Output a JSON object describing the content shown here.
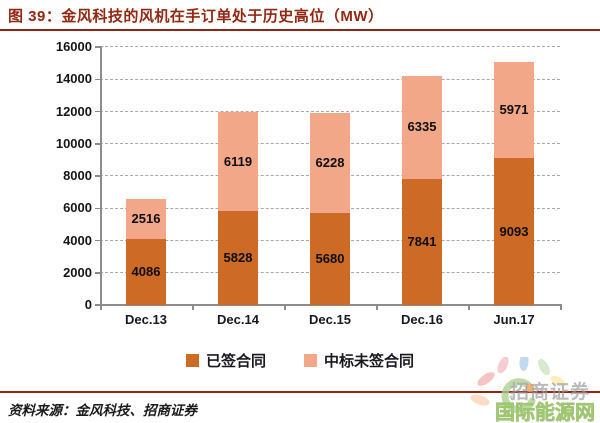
{
  "title": "图 39：金风科技的风机在手订单处于历史高位（MW）",
  "source_note": "资料来源：金风科技、招商证券",
  "watermark": {
    "logo": "flower-sun-logo",
    "text_top": "招商证券",
    "text_bottom": "国际能源网"
  },
  "colors": {
    "title_red": "#92271{2}",
    "rule_red": "#8e2412",
    "bar_signed": "#cd6a26",
    "bar_unsigned": "#f2a788",
    "gridline_gray": "#a8a8a8",
    "axis_gray": "#8c8c8c"
  },
  "chart_data": {
    "type": "bar",
    "stacked": true,
    "title": "金风科技的风机在手订单处于历史高位（MW）",
    "categories": [
      "Dec.13",
      "Dec.14",
      "Dec.15",
      "Dec.16",
      "Jun.17"
    ],
    "series": [
      {
        "name": "已签合同",
        "color": "#cd6a26",
        "values": [
          4086,
          5828,
          5680,
          7841,
          9093
        ]
      },
      {
        "name": "中标未签合同",
        "color": "#f2a788",
        "values": [
          2516,
          6119,
          6228,
          6335,
          5971
        ]
      }
    ],
    "totals": [
      6602,
      11947,
      11908,
      14176,
      15064
    ],
    "ylim": [
      0,
      16000
    ],
    "ytick_step": 2000,
    "yticks": [
      0,
      2000,
      4000,
      6000,
      8000,
      10000,
      12000,
      14000,
      16000
    ],
    "xlabel": "",
    "ylabel": "",
    "grid": "horizontal-dashed",
    "legend_position": "bottom",
    "data_labels": "inside-center"
  }
}
